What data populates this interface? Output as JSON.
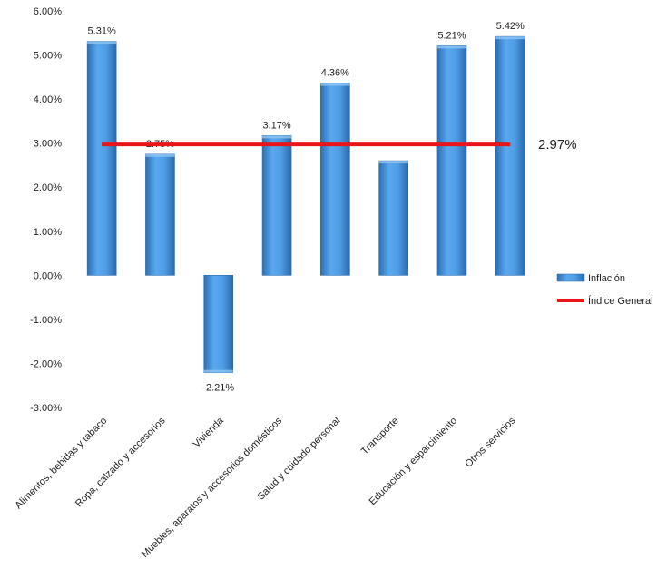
{
  "chart_data": {
    "type": "bar",
    "title": "",
    "xlabel": "",
    "ylabel": "",
    "ylim": [
      -3.0,
      6.0
    ],
    "y_ticks": [
      "6.00%",
      "5.00%",
      "4.00%",
      "3.00%",
      "2.00%",
      "1.00%",
      "0.00%",
      "-1.00%",
      "-2.00%",
      "-3.00%"
    ],
    "categories": [
      "Alimentos, bebidas y tabaco",
      "Ropa, calzado y accesorios",
      "Vivienda",
      "Muebles, aparatos y accesorios domésticos",
      "Salud y cuidado personal",
      "Transporte",
      "Educación y esparcimiento",
      "Otros servicios"
    ],
    "series": [
      {
        "name": "Inflación",
        "values": [
          5.31,
          2.75,
          -2.21,
          3.17,
          4.36,
          2.6,
          5.21,
          5.42
        ],
        "labels": [
          "5.31%",
          "2.75%",
          "-2.21%",
          "3.17%",
          "4.36%",
          "",
          "5.21%",
          "5.42%"
        ],
        "color": "#3f8fd8"
      },
      {
        "name": "Índice General",
        "value": 2.97,
        "label": "2.97%",
        "color": "#e8161b"
      }
    ],
    "legend_position": "right"
  }
}
